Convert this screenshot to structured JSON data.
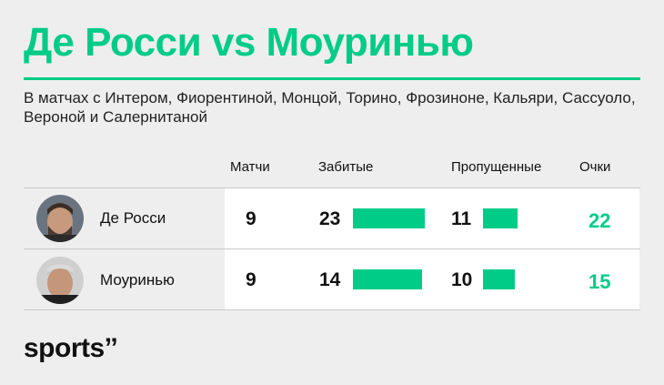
{
  "title": "Де Росси vs Моуринью",
  "subtitle": "В матчах с Интером, Фиорентиной, Монцой, Торино, Фрозиноне, Кальяри, Сассуоло, Вероной и Салернитаной",
  "brand": {
    "logo_text": "sports",
    "logo_mark": "’’"
  },
  "colors": {
    "accent": "#00cc87",
    "background": "#eeeeee",
    "table": "#ffffff"
  },
  "chart_data": {
    "type": "table",
    "columns": [
      "Матчи",
      "Забитые",
      "Пропущенные",
      "Очки"
    ],
    "rows": [
      {
        "name": "Де Росси",
        "matches": 9,
        "scored": 23,
        "conceded": 11,
        "points": 22
      },
      {
        "name": "Моуринью",
        "matches": 9,
        "scored": 14,
        "conceded": 10,
        "points": 15
      }
    ]
  }
}
